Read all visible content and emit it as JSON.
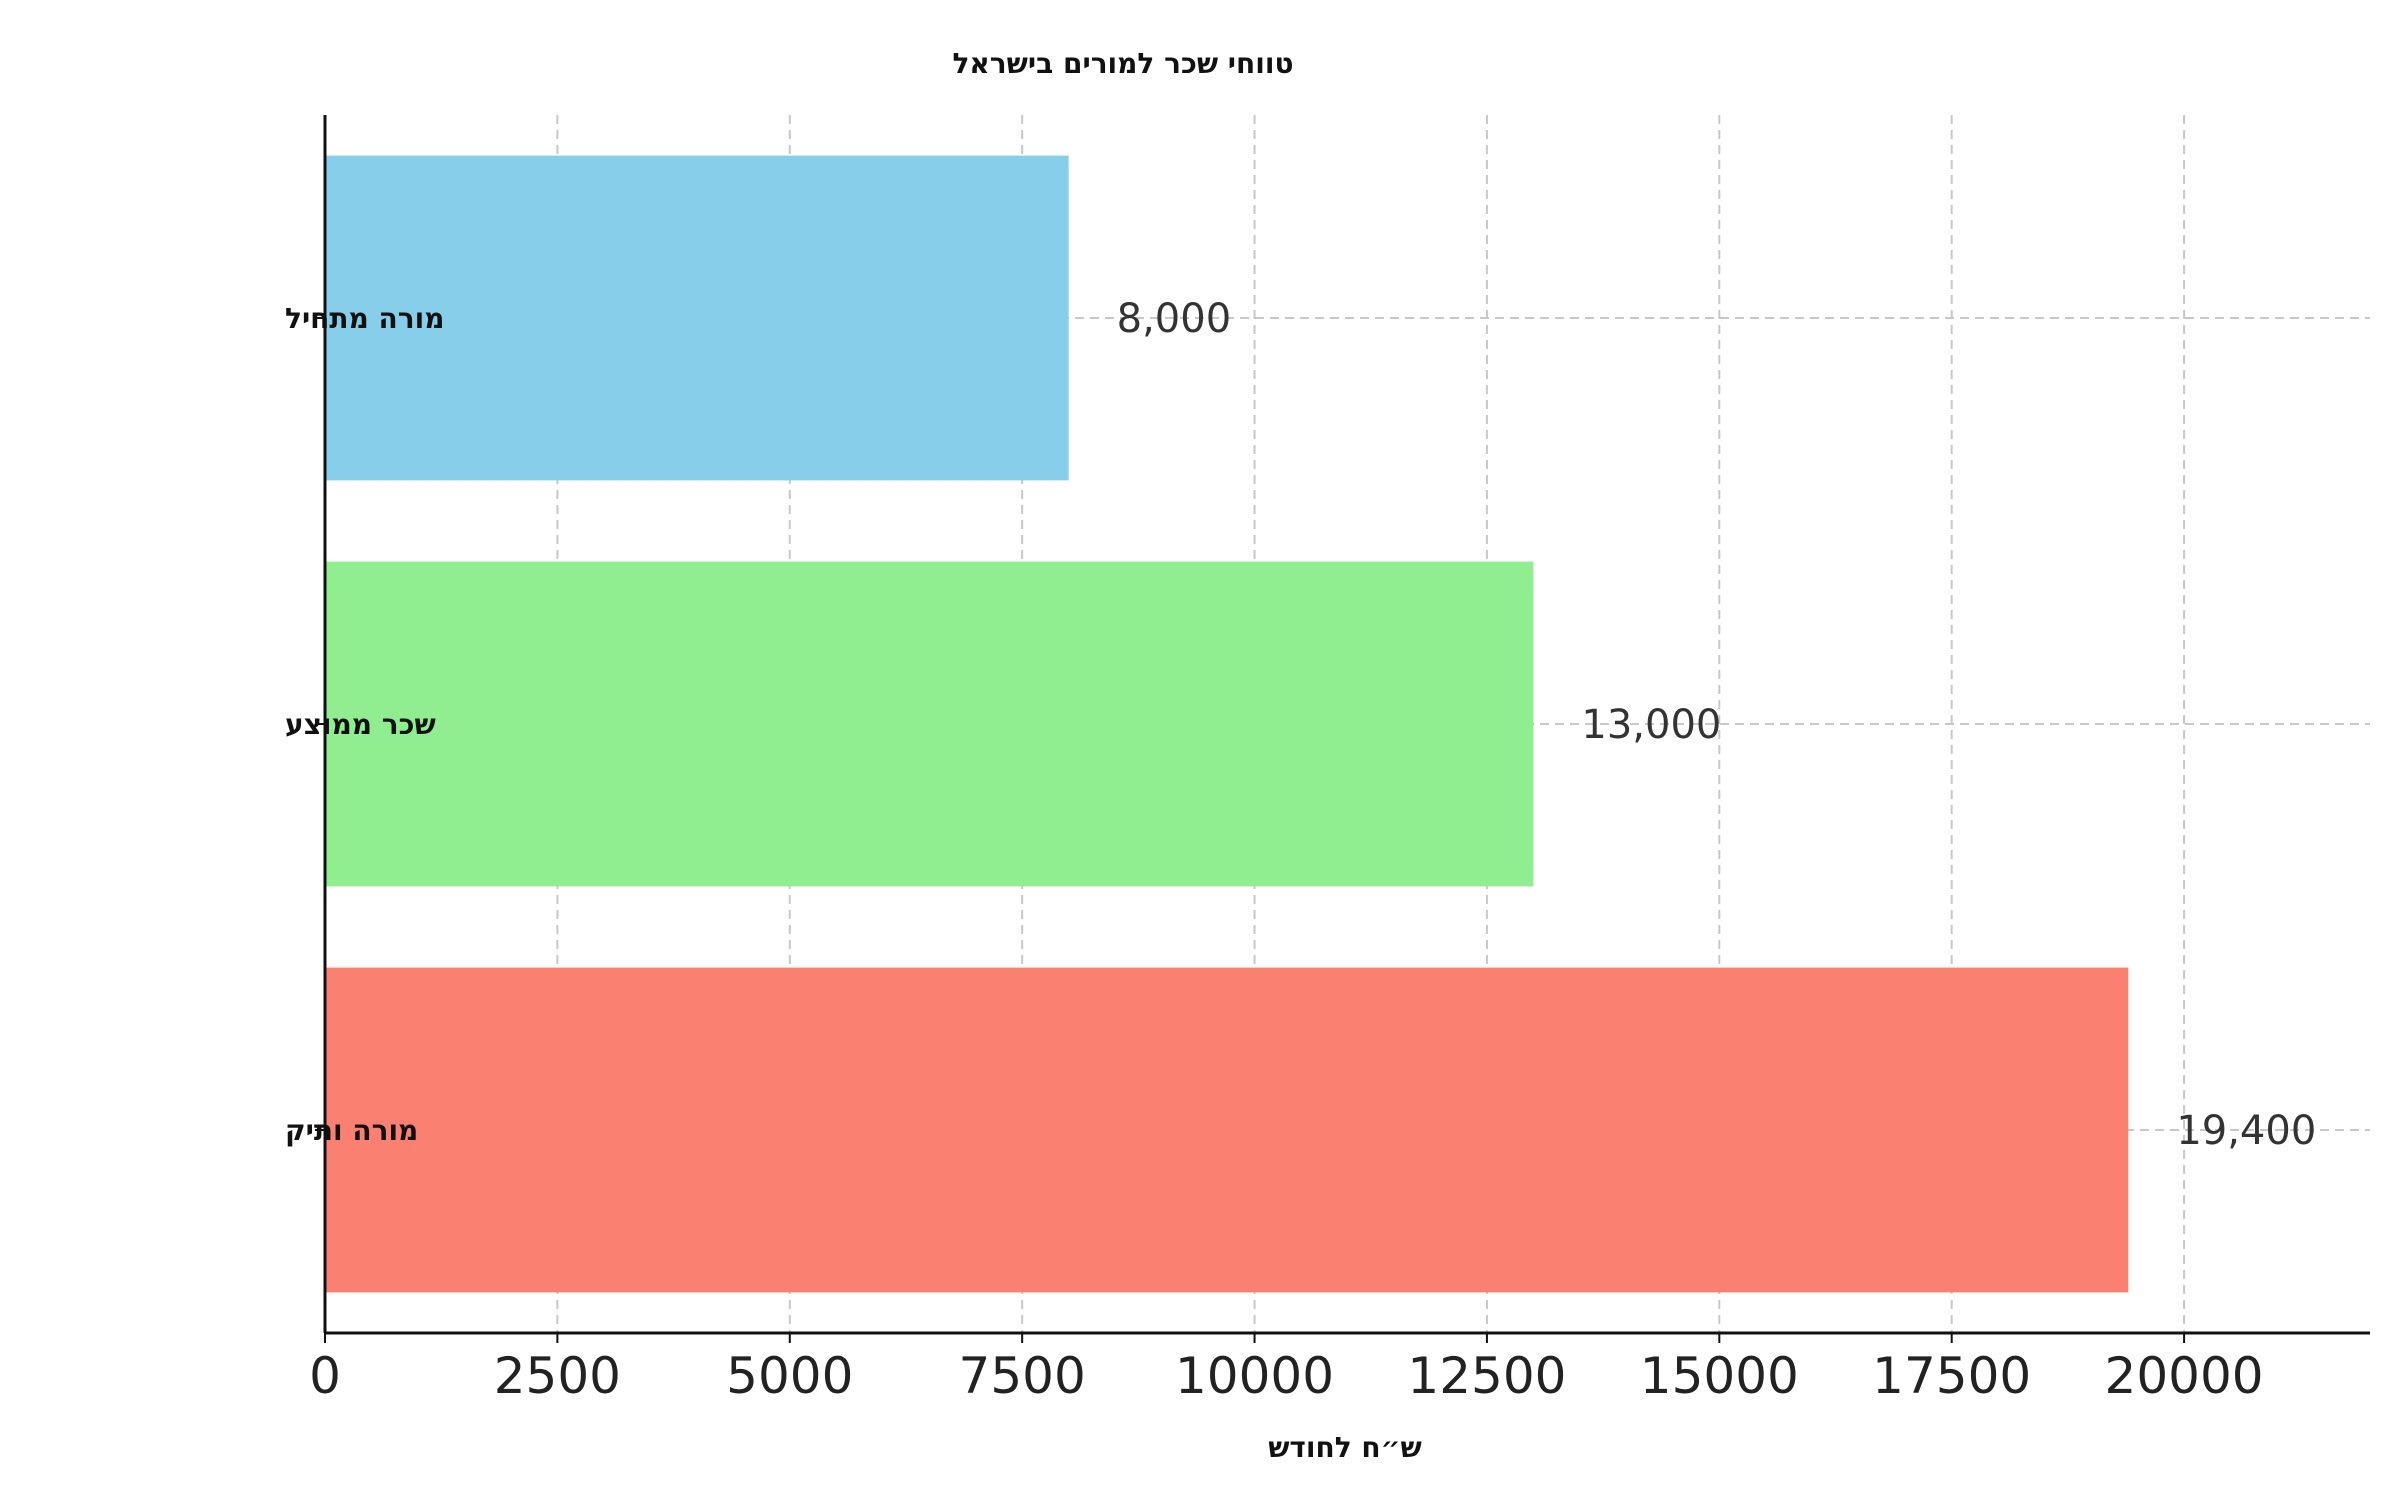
{
  "chart_data": {
    "type": "bar",
    "orientation": "horizontal",
    "title": "טווחי שכר למורים בישראל",
    "xlabel": "ש״ח לחודש",
    "ylabel": "",
    "categories": [
      "מורה מתחיל",
      "שכר ממוצע",
      "מורה ותיק"
    ],
    "values": [
      8000,
      13000,
      19400
    ],
    "data_labels": [
      "8,000",
      "13,000",
      "19,400"
    ],
    "colors": [
      "#87CEEB",
      "#90EE90",
      "#FA8072"
    ],
    "xlim": [
      0,
      22000
    ],
    "xticks": [
      0,
      2500,
      5000,
      7500,
      10000,
      12500,
      15000,
      17500,
      20000
    ],
    "grid": true,
    "legend": "none"
  }
}
